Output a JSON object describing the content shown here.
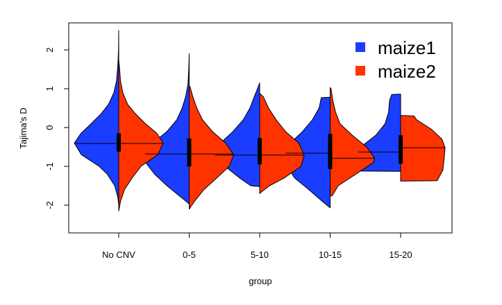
{
  "chart_data": {
    "type": "violin",
    "xlabel": "group",
    "ylabel": "Tajima's D",
    "ylim": [
      -2.7,
      2.5
    ],
    "y_ticks": [
      -2,
      -1,
      0,
      1,
      2
    ],
    "categories": [
      "No CNV",
      "0-5",
      "5-10",
      "10-15",
      "15-20"
    ],
    "grid": false,
    "legend_position": "top-right",
    "series": [
      {
        "name": "maize1",
        "color": "#1a3dff",
        "side": "left",
        "groups": [
          {
            "min": -2.0,
            "max": 2.5,
            "median": -0.41,
            "q1": -0.62,
            "q3": -0.15,
            "profile": [
              [
                -2.0,
                0.0
              ],
              [
                -1.8,
                0.02
              ],
              [
                -1.5,
                0.09
              ],
              [
                -1.2,
                0.26
              ],
              [
                -1.0,
                0.44
              ],
              [
                -0.7,
                0.84
              ],
              [
                -0.4,
                1.0
              ],
              [
                -0.15,
                0.85
              ],
              [
                0.1,
                0.62
              ],
              [
                0.35,
                0.4
              ],
              [
                0.6,
                0.23
              ],
              [
                0.9,
                0.11
              ],
              [
                1.2,
                0.05
              ],
              [
                1.6,
                0.02
              ],
              [
                2.0,
                0.005
              ],
              [
                2.5,
                0.0
              ]
            ]
          },
          {
            "min": -1.97,
            "max": 1.9,
            "median": -0.68,
            "q1": -1.0,
            "q3": -0.28,
            "profile": [
              [
                -1.97,
                0.0
              ],
              [
                -1.8,
                0.18
              ],
              [
                -1.5,
                0.5
              ],
              [
                -1.2,
                0.78
              ],
              [
                -0.9,
                0.98
              ],
              [
                -0.68,
                1.0
              ],
              [
                -0.4,
                0.82
              ],
              [
                -0.1,
                0.5
              ],
              [
                0.2,
                0.28
              ],
              [
                0.5,
                0.16
              ],
              [
                0.8,
                0.08
              ],
              [
                1.1,
                0.03
              ],
              [
                1.5,
                0.01
              ],
              [
                1.9,
                0.0
              ]
            ]
          },
          {
            "min": -1.52,
            "max": 1.15,
            "median": -0.71,
            "q1": -0.95,
            "q3": -0.27,
            "profile": [
              [
                -1.52,
                0.0
              ],
              [
                -1.5,
                0.2
              ],
              [
                -1.3,
                0.45
              ],
              [
                -1.0,
                0.78
              ],
              [
                -0.71,
                1.0
              ],
              [
                -0.4,
                0.88
              ],
              [
                -0.1,
                0.6
              ],
              [
                0.2,
                0.37
              ],
              [
                0.5,
                0.22
              ],
              [
                0.8,
                0.12
              ],
              [
                1.0,
                0.05
              ],
              [
                1.15,
                0.0
              ]
            ]
          },
          {
            "min": -2.07,
            "max": 0.77,
            "median": -0.66,
            "q1": -1.07,
            "q3": -0.16,
            "profile": [
              [
                -2.07,
                0.0
              ],
              [
                -1.9,
                0.18
              ],
              [
                -1.6,
                0.48
              ],
              [
                -1.3,
                0.8
              ],
              [
                -1.0,
                0.97
              ],
              [
                -0.66,
                1.0
              ],
              [
                -0.35,
                0.85
              ],
              [
                -0.1,
                0.62
              ],
              [
                0.2,
                0.4
              ],
              [
                0.5,
                0.25
              ],
              [
                0.77,
                0.2
              ],
              [
                0.78,
                0.0
              ]
            ]
          },
          {
            "min": -1.13,
            "max": 0.86,
            "median": -0.63,
            "q1": -0.93,
            "q3": -0.2,
            "profile": [
              [
                -1.13,
                0.0
              ],
              [
                -1.12,
                0.92
              ],
              [
                -0.95,
                1.0
              ],
              [
                -0.7,
                1.0
              ],
              [
                -0.45,
                0.84
              ],
              [
                -0.2,
                0.56
              ],
              [
                0.1,
                0.35
              ],
              [
                0.4,
                0.27
              ],
              [
                0.7,
                0.25
              ],
              [
                0.85,
                0.2
              ],
              [
                0.86,
                0.0
              ]
            ]
          }
        ]
      },
      {
        "name": "maize2",
        "color": "#ff3300",
        "side": "right",
        "groups": [
          {
            "min": -2.15,
            "max": 1.75,
            "median": -0.41,
            "q1": -0.62,
            "q3": -0.15,
            "profile": [
              [
                -2.15,
                0.0
              ],
              [
                -1.9,
                0.04
              ],
              [
                -1.6,
                0.13
              ],
              [
                -1.3,
                0.3
              ],
              [
                -1.0,
                0.5
              ],
              [
                -0.7,
                0.88
              ],
              [
                -0.4,
                1.0
              ],
              [
                -0.15,
                0.86
              ],
              [
                0.1,
                0.6
              ],
              [
                0.35,
                0.38
              ],
              [
                0.6,
                0.2
              ],
              [
                0.9,
                0.09
              ],
              [
                1.2,
                0.04
              ],
              [
                1.5,
                0.02
              ],
              [
                1.75,
                0.0
              ]
            ]
          },
          {
            "min": -2.1,
            "max": 1.07,
            "median": -0.68,
            "q1": -1.0,
            "q3": -0.28,
            "profile": [
              [
                -2.1,
                0.0
              ],
              [
                -1.9,
                0.12
              ],
              [
                -1.6,
                0.33
              ],
              [
                -1.3,
                0.62
              ],
              [
                -1.0,
                0.9
              ],
              [
                -0.7,
                1.0
              ],
              [
                -0.4,
                0.82
              ],
              [
                -0.1,
                0.52
              ],
              [
                0.2,
                0.3
              ],
              [
                0.5,
                0.17
              ],
              [
                0.8,
                0.08
              ],
              [
                1.05,
                0.02
              ],
              [
                1.07,
                0.0
              ]
            ]
          },
          {
            "min": -1.7,
            "max": 0.88,
            "median": -0.71,
            "q1": -0.95,
            "q3": -0.27,
            "profile": [
              [
                -1.7,
                0.0
              ],
              [
                -1.65,
                0.05
              ],
              [
                -1.5,
                0.22
              ],
              [
                -1.3,
                0.55
              ],
              [
                -1.0,
                0.93
              ],
              [
                -0.71,
                1.0
              ],
              [
                -0.4,
                0.88
              ],
              [
                -0.1,
                0.58
              ],
              [
                0.2,
                0.37
              ],
              [
                0.5,
                0.2
              ],
              [
                0.8,
                0.08
              ],
              [
                0.88,
                0.0
              ]
            ]
          },
          {
            "min": -1.77,
            "max": 1.03,
            "median": -0.79,
            "q1": -1.07,
            "q3": -0.16,
            "profile": [
              [
                -1.77,
                0.0
              ],
              [
                -1.75,
                0.05
              ],
              [
                -1.5,
                0.18
              ],
              [
                -1.2,
                0.58
              ],
              [
                -0.9,
                0.97
              ],
              [
                -0.79,
                1.0
              ],
              [
                -0.5,
                0.82
              ],
              [
                -0.2,
                0.5
              ],
              [
                0.1,
                0.22
              ],
              [
                0.4,
                0.12
              ],
              [
                0.7,
                0.06
              ],
              [
                1.0,
                0.02
              ],
              [
                1.03,
                0.0
              ]
            ]
          },
          {
            "min": -1.38,
            "max": 0.31,
            "median": -0.52,
            "q1": -0.93,
            "q3": -0.2,
            "profile": [
              [
                -1.38,
                0.0
              ],
              [
                -1.37,
                0.82
              ],
              [
                -1.1,
                0.95
              ],
              [
                -0.8,
                0.98
              ],
              [
                -0.52,
                1.0
              ],
              [
                -0.3,
                0.93
              ],
              [
                -0.05,
                0.7
              ],
              [
                0.2,
                0.36
              ],
              [
                0.3,
                0.3
              ],
              [
                0.31,
                0.0
              ]
            ]
          }
        ]
      }
    ]
  }
}
